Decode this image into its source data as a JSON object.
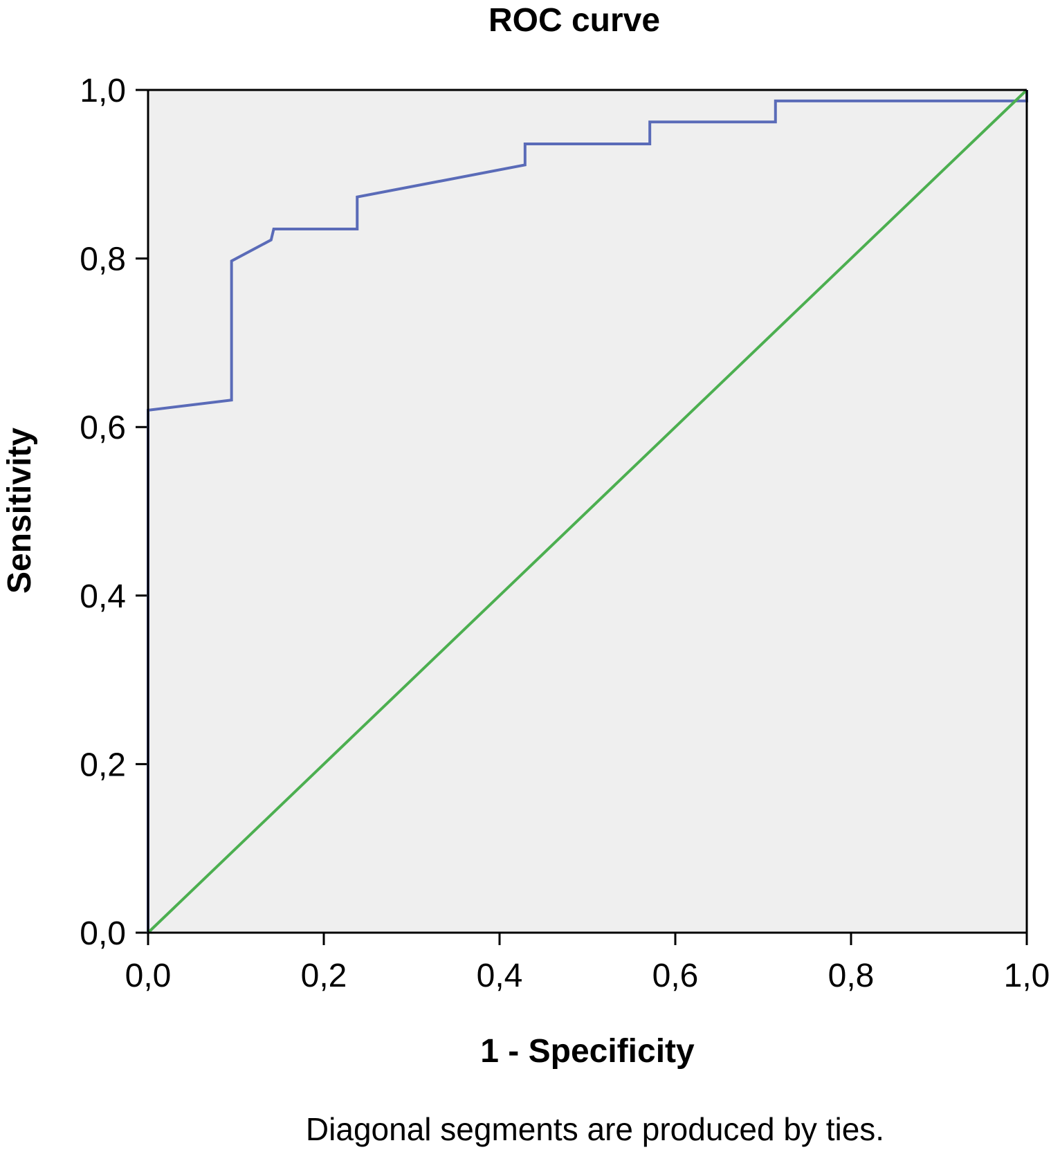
{
  "chart_data": {
    "type": "line",
    "title": "ROC curve",
    "xlabel": "1 - Specificity",
    "ylabel": "Sensitivity",
    "xlim": [
      0,
      1
    ],
    "ylim": [
      0,
      1
    ],
    "x_ticks": [
      "0,0",
      "0,2",
      "0,4",
      "0,6",
      "0,8",
      "1,0"
    ],
    "y_ticks": [
      "0,0",
      "0,2",
      "0,4",
      "0,6",
      "0,8",
      "1,0"
    ],
    "grid": false,
    "background_color": "#efefef",
    "footnote": "Diagonal segments are produced by ties.",
    "series": [
      {
        "color": "#5a6bb8",
        "points": [
          [
            0.0,
            0.0
          ],
          [
            0.0,
            0.62
          ],
          [
            0.095,
            0.632
          ],
          [
            0.095,
            0.797
          ],
          [
            0.14,
            0.822
          ],
          [
            0.143,
            0.835
          ],
          [
            0.238,
            0.835
          ],
          [
            0.238,
            0.873
          ],
          [
            0.429,
            0.911
          ],
          [
            0.429,
            0.936
          ],
          [
            0.571,
            0.936
          ],
          [
            0.571,
            0.962
          ],
          [
            0.714,
            0.962
          ],
          [
            0.714,
            0.987
          ],
          [
            1.0,
            0.987
          ],
          [
            1.0,
            1.0
          ]
        ]
      },
      {
        "color": "#4caf50",
        "points": [
          [
            0.0,
            0.0
          ],
          [
            1.0,
            1.0
          ]
        ]
      }
    ]
  }
}
